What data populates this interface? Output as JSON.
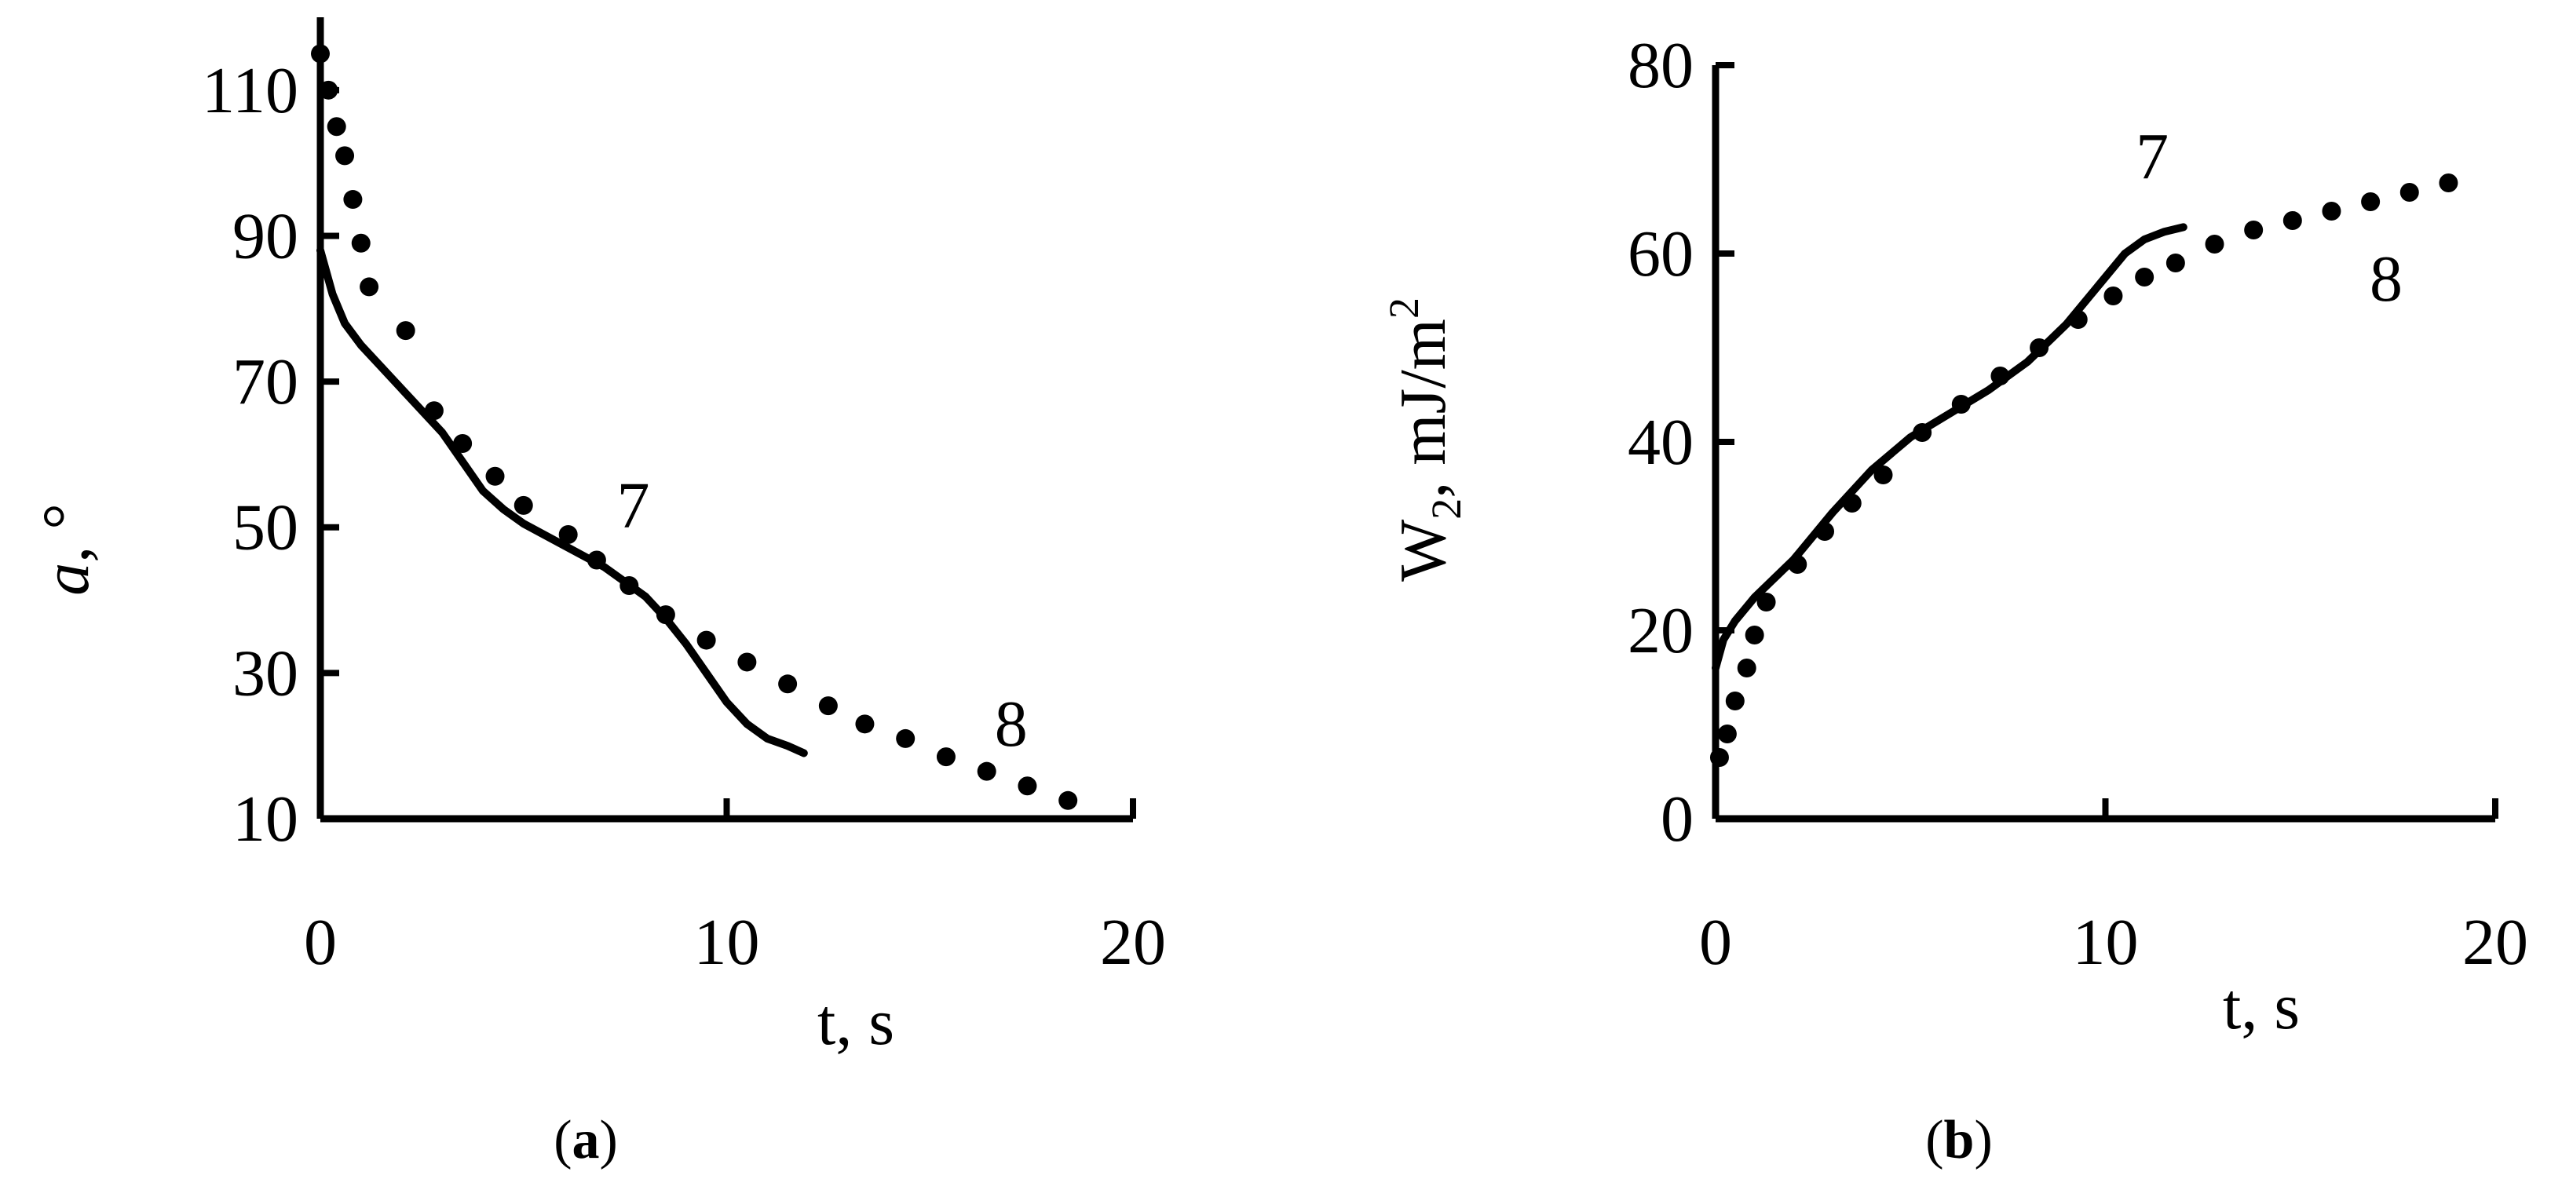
{
  "colors": {
    "ink": "#000000",
    "background": "#ffffff"
  },
  "chart_data": [
    {
      "type": "line",
      "panel_label": "a",
      "xlabel": "t, s",
      "ylabel": {
        "main": "a",
        "suffix": ", °"
      },
      "xlim": [
        0,
        20
      ],
      "ylim": [
        10,
        120
      ],
      "xticks": [
        0,
        10,
        20
      ],
      "yticks": [
        10,
        30,
        50,
        70,
        90,
        110
      ],
      "grid": false,
      "series": [
        {
          "name": "7",
          "style": "solid",
          "x": [
            0,
            0.3,
            0.6,
            1,
            1.5,
            2,
            2.5,
            3,
            3.5,
            4,
            4.5,
            5,
            6,
            7,
            8,
            8.5,
            9,
            9.5,
            10,
            10.5,
            11,
            11.5,
            11.9
          ],
          "y": [
            88,
            82,
            78,
            75,
            72,
            69,
            66,
            63,
            59,
            55,
            52.5,
            50.5,
            47.5,
            44.5,
            40.5,
            37.5,
            34,
            30,
            26,
            23,
            21,
            20,
            19
          ]
        },
        {
          "name": "8",
          "style": "dotted",
          "x": [
            0,
            0.2,
            0.4,
            0.6,
            0.8,
            1.0,
            1.2,
            2.1,
            2.8,
            3.5,
            4.3,
            5.0,
            6.1,
            6.8,
            7.6,
            8.5,
            9.5,
            10.5,
            11.5,
            12.5,
            13.4,
            14.4,
            15.4,
            16.4,
            17.4,
            18.4
          ],
          "y": [
            115,
            110,
            105,
            101,
            95,
            89,
            83,
            77,
            66,
            61.5,
            57,
            53,
            49,
            45.5,
            42,
            38,
            34.5,
            31.5,
            28.5,
            25.5,
            23,
            21,
            18.5,
            16.5,
            14.5,
            12.5
          ]
        }
      ],
      "annotations": [
        {
          "text": "7",
          "x": 7.7,
          "y": 50
        },
        {
          "text": "8",
          "x": 17.0,
          "y": 20
        }
      ]
    },
    {
      "type": "line",
      "panel_label": "b",
      "xlabel": "t, s",
      "ylabel": {
        "main": "W",
        "sub": "2",
        "mid": ", mJ/m",
        "sup": "2"
      },
      "xlim": [
        0,
        20
      ],
      "ylim": [
        0,
        80
      ],
      "xticks": [
        0,
        10,
        20
      ],
      "yticks": [
        0,
        20,
        40,
        60,
        80
      ],
      "grid": false,
      "series": [
        {
          "name": "7",
          "style": "solid",
          "x": [
            0,
            0.2,
            0.5,
            1,
            2,
            3,
            4,
            5,
            6,
            7,
            8,
            9,
            10,
            10.5,
            11,
            11.5,
            12
          ],
          "y": [
            16,
            19,
            21,
            23.5,
            27.5,
            32.5,
            37,
            40.5,
            43,
            45.5,
            48.5,
            52.5,
            57.5,
            60,
            61.5,
            62.3,
            62.8
          ]
        },
        {
          "name": "8",
          "style": "dotted",
          "x": [
            0.1,
            0.3,
            0.5,
            0.8,
            1.0,
            1.3,
            2.1,
            2.8,
            3.5,
            4.3,
            5.3,
            6.3,
            7.3,
            8.3,
            9.3,
            10.2,
            11.0,
            11.8,
            12.8,
            13.8,
            14.8,
            15.8,
            16.8,
            17.8,
            18.8
          ],
          "y": [
            6.5,
            9,
            12.5,
            16,
            19.5,
            23,
            27,
            30.5,
            33.5,
            36.5,
            41,
            44,
            47,
            50,
            53,
            55.5,
            57.5,
            59,
            61,
            62.5,
            63.5,
            64.5,
            65.5,
            66.5,
            67.5
          ]
        }
      ],
      "annotations": [
        {
          "text": "7",
          "x": 11.2,
          "y": 68
        },
        {
          "text": "8",
          "x": 17.2,
          "y": 55
        }
      ]
    }
  ]
}
